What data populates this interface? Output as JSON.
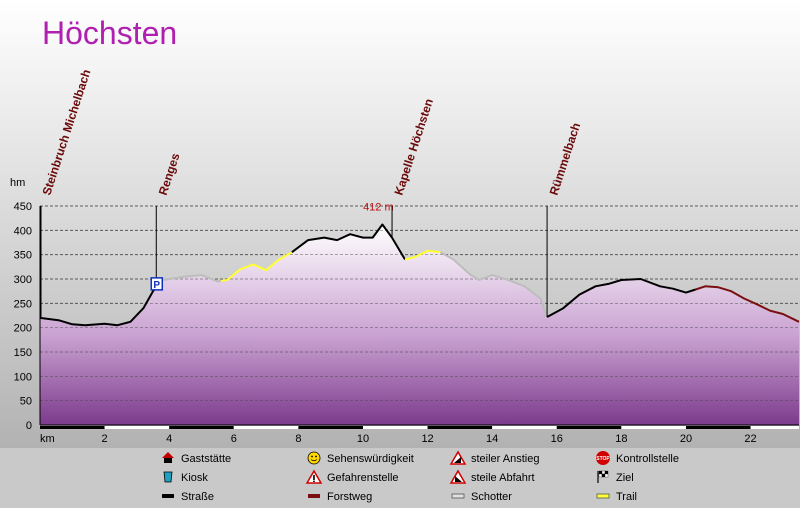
{
  "chart_data": {
    "type": "area",
    "title": "Höchsten",
    "x_unit": "km",
    "y_unit": "hm",
    "xlim": [
      0,
      23.5
    ],
    "ylim": [
      0,
      450
    ],
    "x_ticks": [
      2,
      4,
      6,
      8,
      10,
      12,
      14,
      16,
      18,
      20,
      22
    ],
    "y_ticks": [
      0,
      50,
      100,
      150,
      200,
      250,
      300,
      350,
      400,
      450
    ],
    "max_label": "412 m",
    "max_point": [
      10.6,
      412
    ],
    "profile": [
      [
        0,
        220
      ],
      [
        0.6,
        215
      ],
      [
        1.0,
        207
      ],
      [
        1.4,
        205
      ],
      [
        2.0,
        208
      ],
      [
        2.4,
        205
      ],
      [
        2.8,
        212
      ],
      [
        3.2,
        240
      ],
      [
        3.5,
        275
      ],
      [
        3.8,
        298
      ],
      [
        4.5,
        305
      ],
      [
        5.0,
        308
      ],
      [
        5.5,
        295
      ],
      [
        5.8,
        298
      ],
      [
        6.2,
        320
      ],
      [
        6.6,
        330
      ],
      [
        7.0,
        318
      ],
      [
        7.4,
        340
      ],
      [
        7.8,
        355
      ],
      [
        8.3,
        380
      ],
      [
        8.8,
        385
      ],
      [
        9.2,
        380
      ],
      [
        9.6,
        392
      ],
      [
        10.0,
        385
      ],
      [
        10.3,
        385
      ],
      [
        10.6,
        412
      ],
      [
        10.9,
        385
      ],
      [
        11.3,
        340
      ],
      [
        11.6,
        345
      ],
      [
        12.0,
        358
      ],
      [
        12.4,
        355
      ],
      [
        12.8,
        340
      ],
      [
        13.3,
        310
      ],
      [
        13.6,
        298
      ],
      [
        14.0,
        308
      ],
      [
        14.5,
        298
      ],
      [
        15.0,
        285
      ],
      [
        15.5,
        260
      ],
      [
        15.7,
        222
      ],
      [
        16.2,
        240
      ],
      [
        16.7,
        268
      ],
      [
        17.2,
        285
      ],
      [
        17.6,
        290
      ],
      [
        18.0,
        298
      ],
      [
        18.6,
        300
      ],
      [
        19.2,
        285
      ],
      [
        19.6,
        280
      ],
      [
        20.0,
        272
      ],
      [
        20.6,
        285
      ],
      [
        21.0,
        283
      ],
      [
        21.4,
        275
      ],
      [
        21.8,
        260
      ],
      [
        22.2,
        248
      ],
      [
        22.6,
        235
      ],
      [
        23.0,
        228
      ],
      [
        23.5,
        212
      ]
    ],
    "segments": [
      {
        "type": "road",
        "from": 0,
        "to": 3.6
      },
      {
        "type": "gravel",
        "from": 3.6,
        "to": 5.6
      },
      {
        "type": "trail",
        "from": 5.6,
        "to": 7.8
      },
      {
        "type": "road",
        "from": 7.8,
        "to": 11.3
      },
      {
        "type": "trail",
        "from": 11.3,
        "to": 12.4
      },
      {
        "type": "gravel",
        "from": 12.4,
        "to": 15.7
      },
      {
        "type": "road",
        "from": 15.7,
        "to": 20.3
      },
      {
        "type": "forest",
        "from": 20.3,
        "to": 23.5
      }
    ],
    "waypoints": [
      {
        "name": "Steinbruch Michelbach",
        "km": 0,
        "line_top": 450
      },
      {
        "name": "Renges",
        "km": 3.6,
        "line_top": 450
      },
      {
        "name": "Kapelle Höchsten",
        "km": 10.9,
        "line_top": 450
      },
      {
        "name": "Rümmelbach",
        "km": 15.7,
        "line_top": 450
      }
    ],
    "parking": {
      "label": "P",
      "km": 3.6,
      "elev": 290
    },
    "legend": [
      {
        "label": "Gaststätte",
        "icon": "house-icon"
      },
      {
        "label": "Sehenswürdigkeit",
        "icon": "smiley-icon"
      },
      {
        "label": "steiler Anstieg",
        "icon": "steep-ascent-icon"
      },
      {
        "label": "Kontrollstelle",
        "icon": "stop-sign-icon"
      },
      {
        "label": "Kiosk",
        "icon": "kiosk-cup-icon"
      },
      {
        "label": "Gefahrenstelle",
        "icon": "warning-icon"
      },
      {
        "label": "steile Abfahrt",
        "icon": "steep-descent-icon"
      },
      {
        "label": "Ziel",
        "icon": "checkered-flag-icon"
      },
      {
        "label": "Straße",
        "icon": "road-swatch"
      },
      {
        "label": "Forstweg",
        "icon": "forest-road-swatch"
      },
      {
        "label": "Schotter",
        "icon": "gravel-swatch"
      },
      {
        "label": "Trail",
        "icon": "trail-swatch"
      }
    ],
    "colors": {
      "title": "#b020b0",
      "waypoint_label": "#6a0a0a",
      "max_label": "#c01010",
      "road": "#000000",
      "forest": "#7a0f10",
      "gravel": "#bdbdbd",
      "trail": "#ffff33",
      "area_top": "#ffffff",
      "area_bottom": "#7c3a8c",
      "parking": "#1030c0"
    }
  }
}
